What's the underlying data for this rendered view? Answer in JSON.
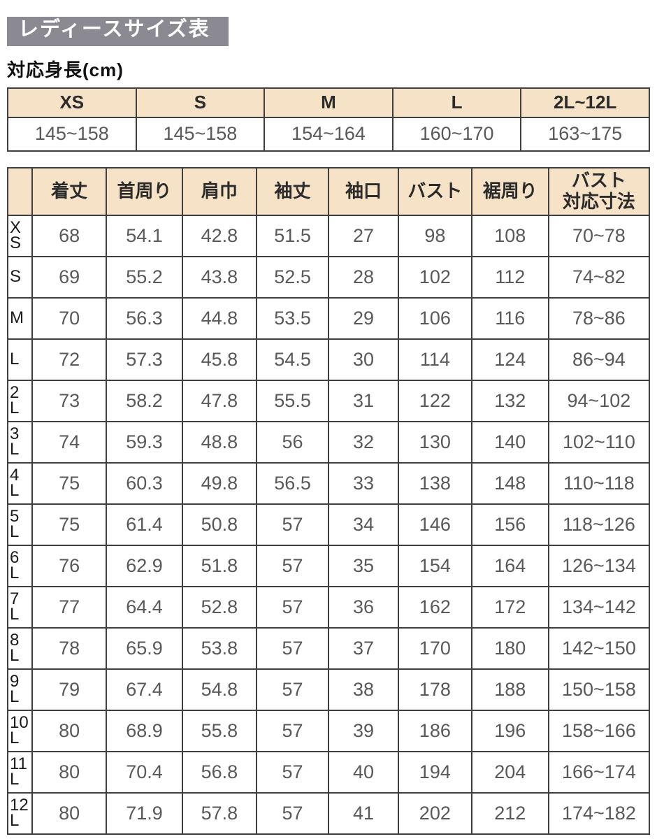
{
  "title": "レディースサイズ表",
  "height_section": {
    "label": "対応身長(cm)",
    "columns": [
      "XS",
      "S",
      "M",
      "L",
      "2L~12L"
    ],
    "values": [
      "145~158",
      "145~158",
      "154~164",
      "160~170",
      "163~175"
    ]
  },
  "size_table": {
    "columns": [
      "",
      "着丈",
      "首周り",
      "肩巾",
      "袖丈",
      "袖口",
      "バスト",
      "裾周り",
      "バスト\n対応寸法"
    ],
    "rows": [
      {
        "size": "XS",
        "label": "X\nS",
        "values": [
          "68",
          "54.1",
          "42.8",
          "51.5",
          "27",
          "98",
          "108",
          "70~78"
        ]
      },
      {
        "size": "S",
        "label": "S",
        "values": [
          "69",
          "55.2",
          "43.8",
          "52.5",
          "28",
          "102",
          "112",
          "74~82"
        ]
      },
      {
        "size": "M",
        "label": "M",
        "values": [
          "70",
          "56.3",
          "44.8",
          "53.5",
          "29",
          "106",
          "116",
          "78~86"
        ]
      },
      {
        "size": "L",
        "label": "L",
        "values": [
          "72",
          "57.3",
          "45.8",
          "54.5",
          "30",
          "114",
          "124",
          "86~94"
        ]
      },
      {
        "size": "2L",
        "label": "2\nL",
        "values": [
          "73",
          "58.2",
          "47.8",
          "55.5",
          "31",
          "122",
          "132",
          "94~102"
        ]
      },
      {
        "size": "3L",
        "label": "3\nL",
        "values": [
          "74",
          "59.3",
          "48.8",
          "56",
          "32",
          "130",
          "140",
          "102~110"
        ]
      },
      {
        "size": "4L",
        "label": "4\nL",
        "values": [
          "75",
          "60.3",
          "49.8",
          "56.5",
          "33",
          "138",
          "148",
          "110~118"
        ]
      },
      {
        "size": "5L",
        "label": "5\nL",
        "values": [
          "75",
          "61.4",
          "50.8",
          "57",
          "34",
          "146",
          "156",
          "118~126"
        ]
      },
      {
        "size": "6L",
        "label": "6\nL",
        "values": [
          "76",
          "62.9",
          "51.8",
          "57",
          "35",
          "154",
          "164",
          "126~134"
        ]
      },
      {
        "size": "7L",
        "label": "7\nL",
        "values": [
          "77",
          "64.4",
          "52.8",
          "57",
          "36",
          "162",
          "172",
          "134~142"
        ]
      },
      {
        "size": "8L",
        "label": "8\nL",
        "values": [
          "78",
          "65.9",
          "53.8",
          "57",
          "37",
          "170",
          "180",
          "142~150"
        ]
      },
      {
        "size": "9L",
        "label": "9\nL",
        "values": [
          "79",
          "67.4",
          "54.8",
          "57",
          "38",
          "178",
          "188",
          "150~158"
        ]
      },
      {
        "size": "10L",
        "label": "10\nL",
        "values": [
          "80",
          "68.9",
          "55.8",
          "57",
          "39",
          "186",
          "196",
          "158~166"
        ]
      },
      {
        "size": "11L",
        "label": "11\nL",
        "values": [
          "80",
          "70.4",
          "56.8",
          "57",
          "40",
          "194",
          "204",
          "166~174"
        ]
      },
      {
        "size": "12L",
        "label": "12\nL",
        "values": [
          "80",
          "71.9",
          "57.8",
          "57",
          "41",
          "202",
          "212",
          "174~182"
        ]
      }
    ]
  },
  "colors": {
    "title_background": "#8b8a93",
    "title_text": "#ffffff",
    "header_background": "#f6e2c6",
    "border": "#3f3f3f",
    "value_text": "#595959"
  }
}
